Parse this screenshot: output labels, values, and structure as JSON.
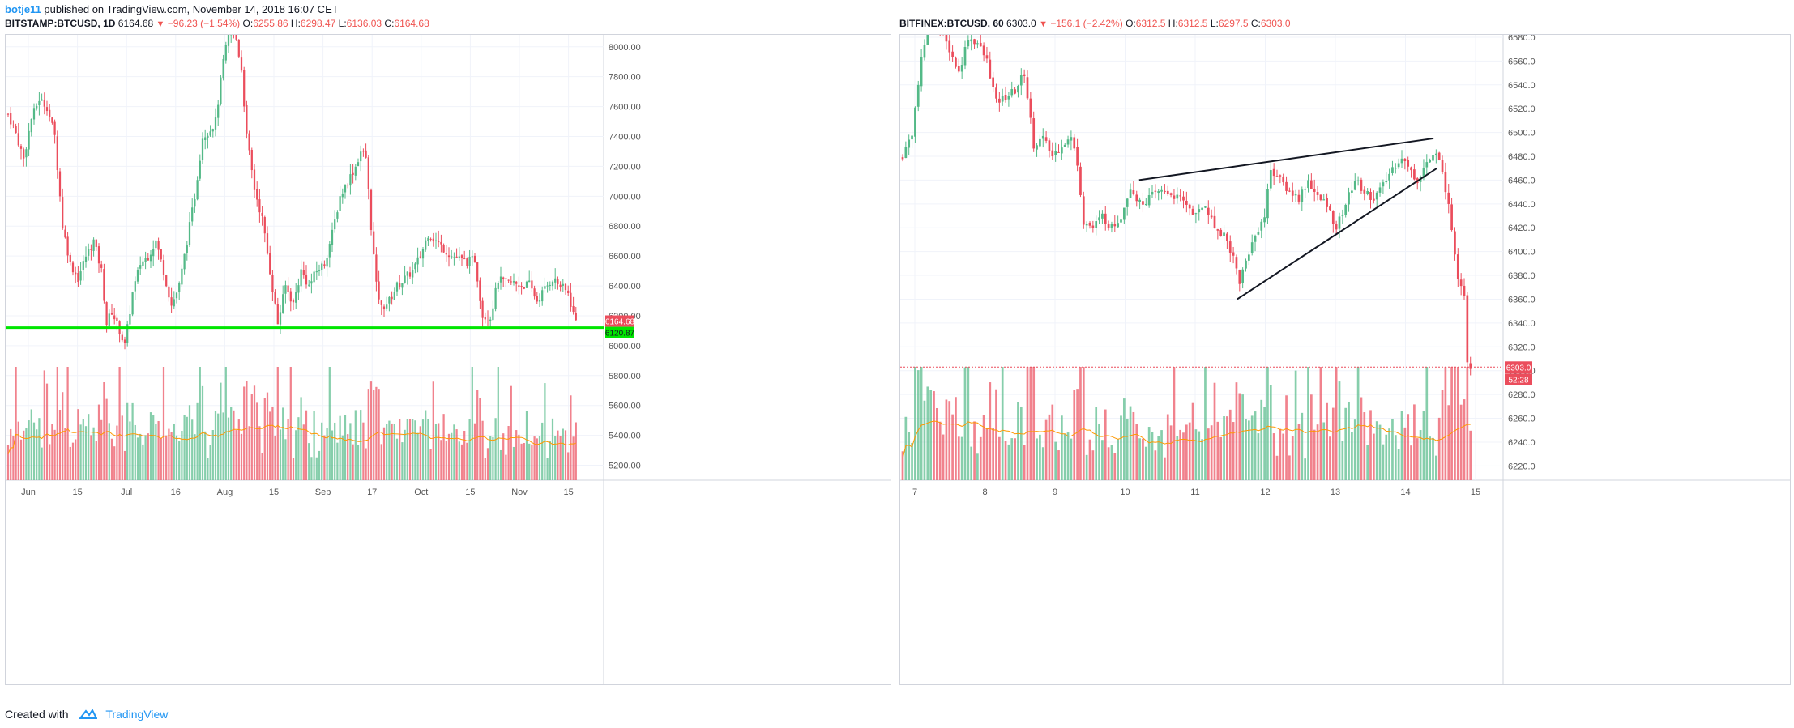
{
  "header": {
    "user": "botje11",
    "published": "published on TradingView.com, November 14, 2018 16:07 CET"
  },
  "footer": {
    "created_with": "Created with",
    "brand": "TradingView"
  },
  "left": {
    "symbol": "BITSTAMP:BTCUSD, 1D",
    "last": "6164.68",
    "change": "−96.23 (−1.54%)",
    "o": "6255.86",
    "h": "6298.47",
    "l": "6136.03",
    "c": "6164.68",
    "price_tag": "6164.68",
    "line_tag": "6120.87"
  },
  "right": {
    "symbol": "BITFINEX:BTCUSD, 60",
    "last": "6303.0",
    "change": "−156.1 (−2.42%)",
    "o": "6312.5",
    "h": "6312.5",
    "l": "6297.5",
    "c": "6303.0",
    "price_tag": "6303.0",
    "timer_tag": "52:28"
  },
  "colors": {
    "up": "#53b987",
    "down": "#eb4d5c",
    "ma": "#ff9800",
    "support": "#00e600",
    "tag_red": "#eb4d5c"
  },
  "chart_data": [
    {
      "type": "candlestick",
      "title": "BITSTAMP:BTCUSD, 1D",
      "ylim": [
        5100,
        8080
      ],
      "y_ticks": [
        "8000.00",
        "7800.00",
        "7600.00",
        "7400.00",
        "7200.00",
        "7000.00",
        "6800.00",
        "6600.00",
        "6400.00",
        "6200.00",
        "6000.00",
        "5800.00",
        "5600.00",
        "5400.00",
        "5200.00"
      ],
      "x_ticks": [
        "Jun",
        "15",
        "Jul",
        "16",
        "Aug",
        "15",
        "Sep",
        "17",
        "Oct",
        "15",
        "Nov",
        "15"
      ],
      "horizontal_line": 6120.87,
      "close_path": [
        [
          0,
          7550
        ],
        [
          3,
          7420
        ],
        [
          6,
          7250
        ],
        [
          9,
          7520
        ],
        [
          12,
          7650
        ],
        [
          15,
          7600
        ],
        [
          18,
          7400
        ],
        [
          21,
          6800
        ],
        [
          24,
          6550
        ],
        [
          27,
          6450
        ],
        [
          30,
          6600
        ],
        [
          33,
          6700
        ],
        [
          36,
          6500
        ],
        [
          38,
          6150
        ],
        [
          40,
          6230
        ],
        [
          43,
          6100
        ],
        [
          45,
          6000
        ],
        [
          48,
          6350
        ],
        [
          51,
          6550
        ],
        [
          54,
          6600
        ],
        [
          57,
          6700
        ],
        [
          60,
          6500
        ],
        [
          63,
          6270
        ],
        [
          66,
          6400
        ],
        [
          69,
          6700
        ],
        [
          72,
          7000
        ],
        [
          75,
          7400
        ],
        [
          78,
          7450
        ],
        [
          80,
          7500
        ],
        [
          83,
          7900
        ],
        [
          86,
          8150
        ],
        [
          88,
          8050
        ],
        [
          90,
          7850
        ],
        [
          92,
          7400
        ],
        [
          95,
          7050
        ],
        [
          98,
          6850
        ],
        [
          101,
          6500
        ],
        [
          104,
          6150
        ],
        [
          107,
          6400
        ],
        [
          110,
          6280
        ],
        [
          113,
          6500
        ],
        [
          116,
          6400
        ],
        [
          119,
          6500
        ],
        [
          122,
          6550
        ],
        [
          125,
          6750
        ],
        [
          128,
          7000
        ],
        [
          131,
          7100
        ],
        [
          134,
          7200
        ],
        [
          136,
          7300
        ],
        [
          138,
          7260
        ],
        [
          140,
          6800
        ],
        [
          142,
          6400
        ],
        [
          144,
          6250
        ],
        [
          147,
          6300
        ],
        [
          150,
          6400
        ],
        [
          153,
          6450
        ],
        [
          156,
          6500
        ],
        [
          159,
          6600
        ],
        [
          162,
          6750
        ],
        [
          165,
          6700
        ],
        [
          168,
          6650
        ],
        [
          171,
          6600
        ],
        [
          174,
          6580
        ],
        [
          177,
          6560
        ],
        [
          180,
          6580
        ],
        [
          183,
          6200
        ],
        [
          186,
          6190
        ],
        [
          189,
          6440
        ],
        [
          192,
          6420
        ],
        [
          195,
          6420
        ],
        [
          198,
          6400
        ],
        [
          201,
          6410
        ],
        [
          204,
          6300
        ],
        [
          207,
          6380
        ],
        [
          210,
          6450
        ],
        [
          213,
          6400
        ],
        [
          216,
          6350
        ],
        [
          218,
          6215
        ],
        [
          219,
          6165
        ]
      ],
      "volume_ma_note": "volume bars with moving average"
    },
    {
      "type": "candlestick",
      "title": "BITFINEX:BTCUSD, 60",
      "ylim": [
        6208,
        6582
      ],
      "y_ticks": [
        "6580.0",
        "6560.0",
        "6540.0",
        "6520.0",
        "6500.0",
        "6480.0",
        "6460.0",
        "6440.0",
        "6420.0",
        "6400.0",
        "6380.0",
        "6360.0",
        "6340.0",
        "6320.0",
        "6300.0",
        "6280.0",
        "6260.0",
        "6240.0",
        "6220.0"
      ],
      "x_ticks": [
        "7",
        "8",
        "9",
        "10",
        "11",
        "12",
        "13",
        "14",
        "15"
      ],
      "close_path": [
        [
          0,
          6480
        ],
        [
          3,
          6500
        ],
        [
          6,
          6560
        ],
        [
          9,
          6600
        ],
        [
          12,
          6585
        ],
        [
          15,
          6570
        ],
        [
          18,
          6550
        ],
        [
          21,
          6580
        ],
        [
          24,
          6575
        ],
        [
          27,
          6560
        ],
        [
          30,
          6525
        ],
        [
          33,
          6530
        ],
        [
          36,
          6535
        ],
        [
          39,
          6550
        ],
        [
          42,
          6490
        ],
        [
          45,
          6495
        ],
        [
          48,
          6480
        ],
        [
          51,
          6490
        ],
        [
          54,
          6495
        ],
        [
          56,
          6475
        ],
        [
          58,
          6425
        ],
        [
          61,
          6420
        ],
        [
          64,
          6430
        ],
        [
          67,
          6420
        ],
        [
          70,
          6430
        ],
        [
          73,
          6455
        ],
        [
          76,
          6440
        ],
        [
          79,
          6445
        ],
        [
          82,
          6450
        ],
        [
          85,
          6450
        ],
        [
          88,
          6445
        ],
        [
          91,
          6440
        ],
        [
          94,
          6430
        ],
        [
          97,
          6440
        ],
        [
          100,
          6420
        ],
        [
          103,
          6415
        ],
        [
          106,
          6395
        ],
        [
          108,
          6375
        ],
        [
          111,
          6400
        ],
        [
          114,
          6420
        ],
        [
          116,
          6430
        ],
        [
          118,
          6470
        ],
        [
          121,
          6460
        ],
        [
          124,
          6450
        ],
        [
          127,
          6445
        ],
        [
          130,
          6460
        ],
        [
          133,
          6445
        ],
        [
          136,
          6440
        ],
        [
          139,
          6420
        ],
        [
          142,
          6440
        ],
        [
          145,
          6460
        ],
        [
          148,
          6450
        ],
        [
          151,
          6445
        ],
        [
          154,
          6455
        ],
        [
          157,
          6470
        ],
        [
          160,
          6480
        ],
        [
          162,
          6470
        ],
        [
          165,
          6460
        ],
        [
          168,
          6475
        ],
        [
          171,
          6480
        ],
        [
          173,
          6470
        ],
        [
          176,
          6420
        ],
        [
          178,
          6380
        ],
        [
          180,
          6365
        ],
        [
          181,
          6310
        ],
        [
          182,
          6303
        ]
      ],
      "rising_wedge": {
        "upper": [
          [
            10.2,
            6460
          ],
          [
            14.4,
            6495
          ]
        ],
        "lower": [
          [
            11.6,
            6360
          ],
          [
            14.45,
            6470
          ]
        ]
      }
    }
  ]
}
